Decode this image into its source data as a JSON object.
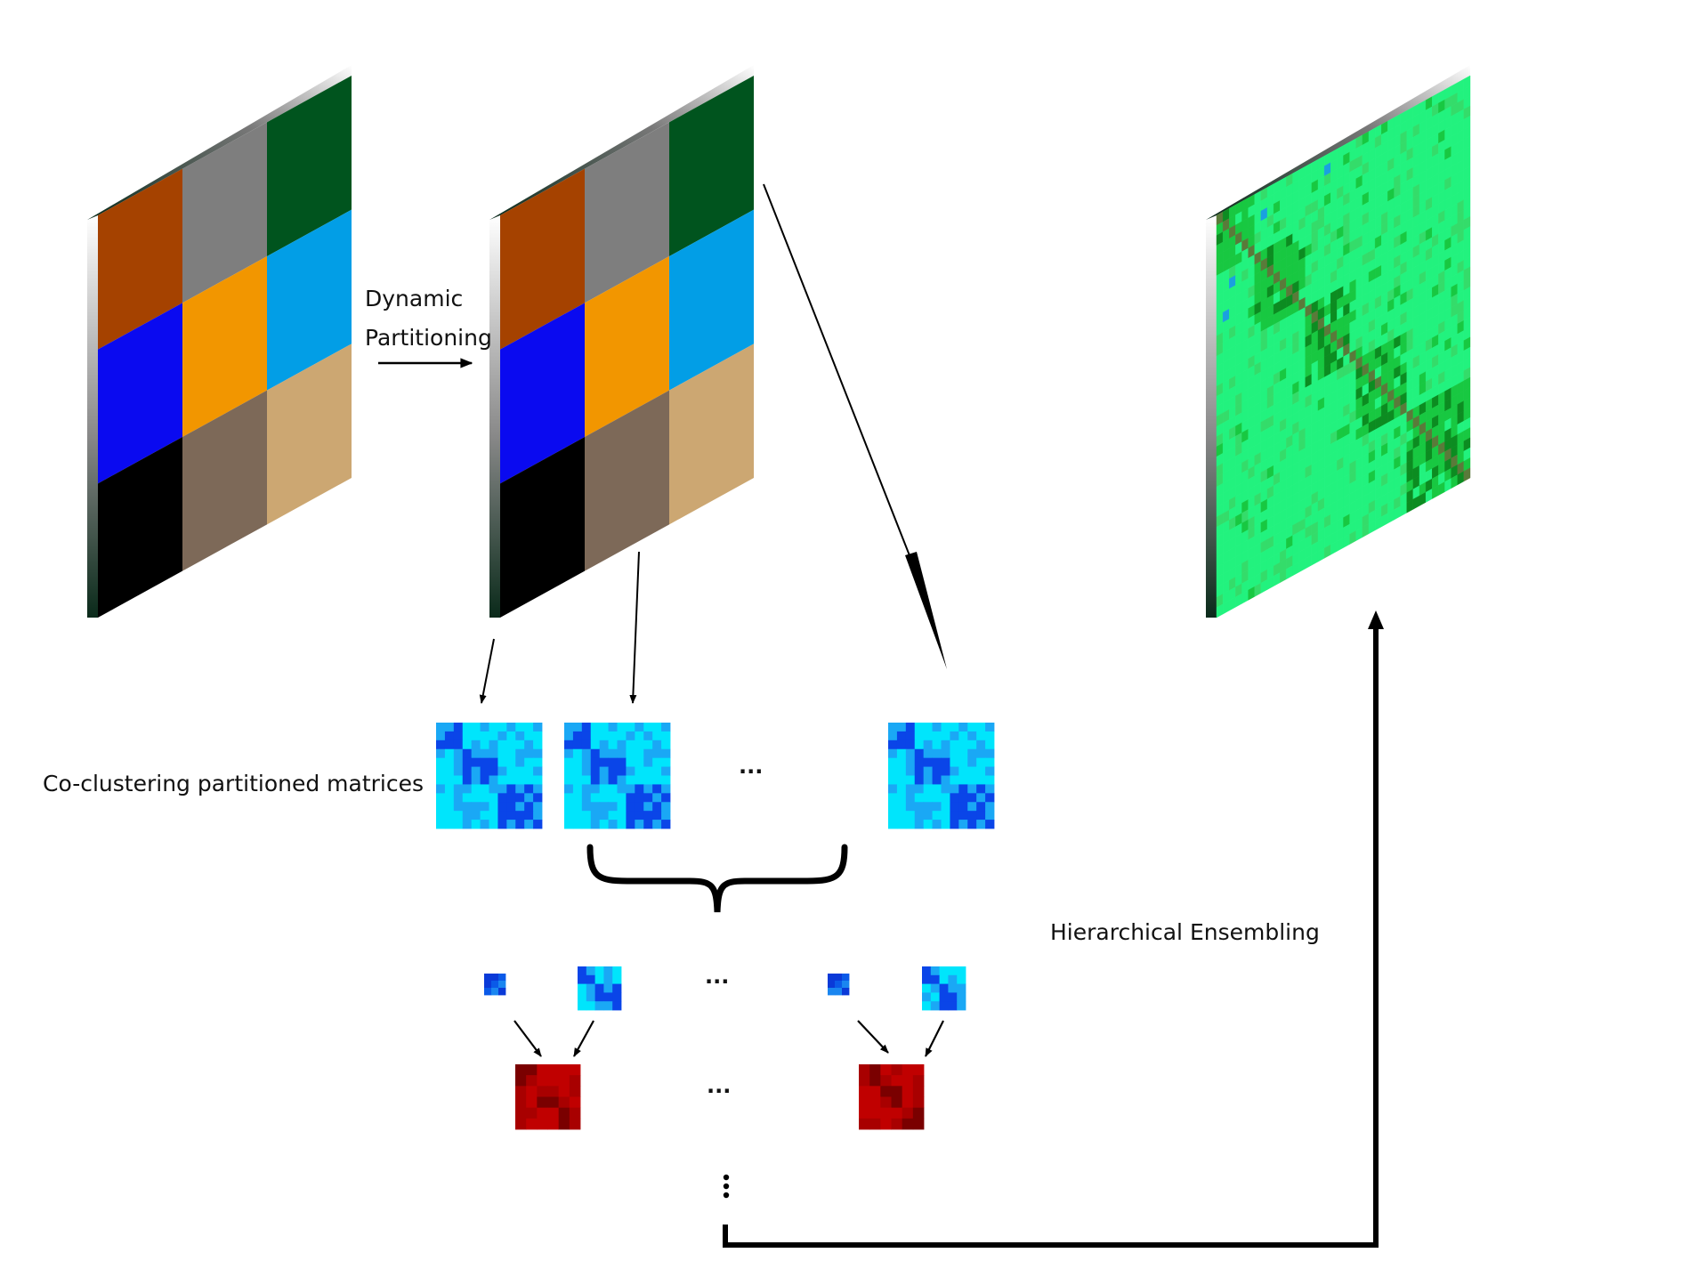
{
  "labels": {
    "dynamic": "Dynamic",
    "partitioning": "Partitioning",
    "coclustering": "Co-clustering partitioned matrices",
    "hierarchical": "Hierarchical Ensembling",
    "ellipsis": "..."
  },
  "block_colors": [
    [
      "#a54200",
      "#7e7e7e",
      "#00541e"
    ],
    [
      "#0a0af0",
      "#f29600",
      "#029ee6"
    ],
    [
      "#000000",
      "#7d6958",
      "#cca772"
    ]
  ],
  "colors": {
    "cyan_light": "#00e5fc",
    "cyan_mid": "#1aa8f5",
    "blue_dark": "#0a45e8",
    "red_light": "#c00000",
    "red_dark": "#7a0000",
    "green_light": "#22f27e",
    "green_mid": "#18c841",
    "green_dark": "#0c8c21",
    "arrow": "#000000"
  }
}
